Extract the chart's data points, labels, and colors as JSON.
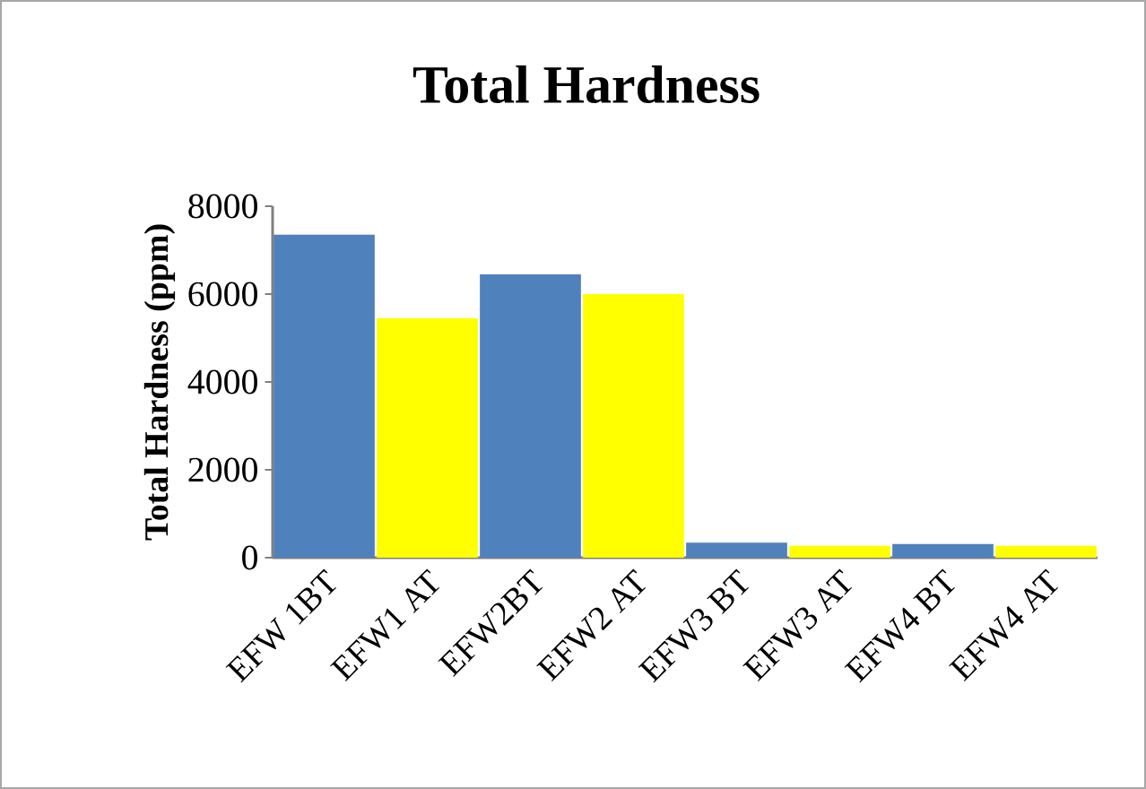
{
  "chart_data": {
    "type": "bar",
    "title": "Total Hardness",
    "ylabel": "Total Hardness (ppm)",
    "categories": [
      "EFW 1BT",
      "EFW1 AT",
      "EFW2BT",
      "EFW2 AT",
      "EFW3 BT",
      "EFW3 AT",
      "EFW4 BT",
      "EFW4 AT"
    ],
    "values": [
      7350,
      5450,
      6450,
      6000,
      340,
      270,
      310,
      270
    ],
    "colors": [
      "#4f81bd",
      "#ffff00",
      "#4f81bd",
      "#ffff00",
      "#4f81bd",
      "#ffff00",
      "#4f81bd",
      "#ffff00"
    ],
    "ylim": [
      0,
      8000
    ],
    "yticks": [
      0,
      2000,
      4000,
      6000,
      8000
    ]
  }
}
